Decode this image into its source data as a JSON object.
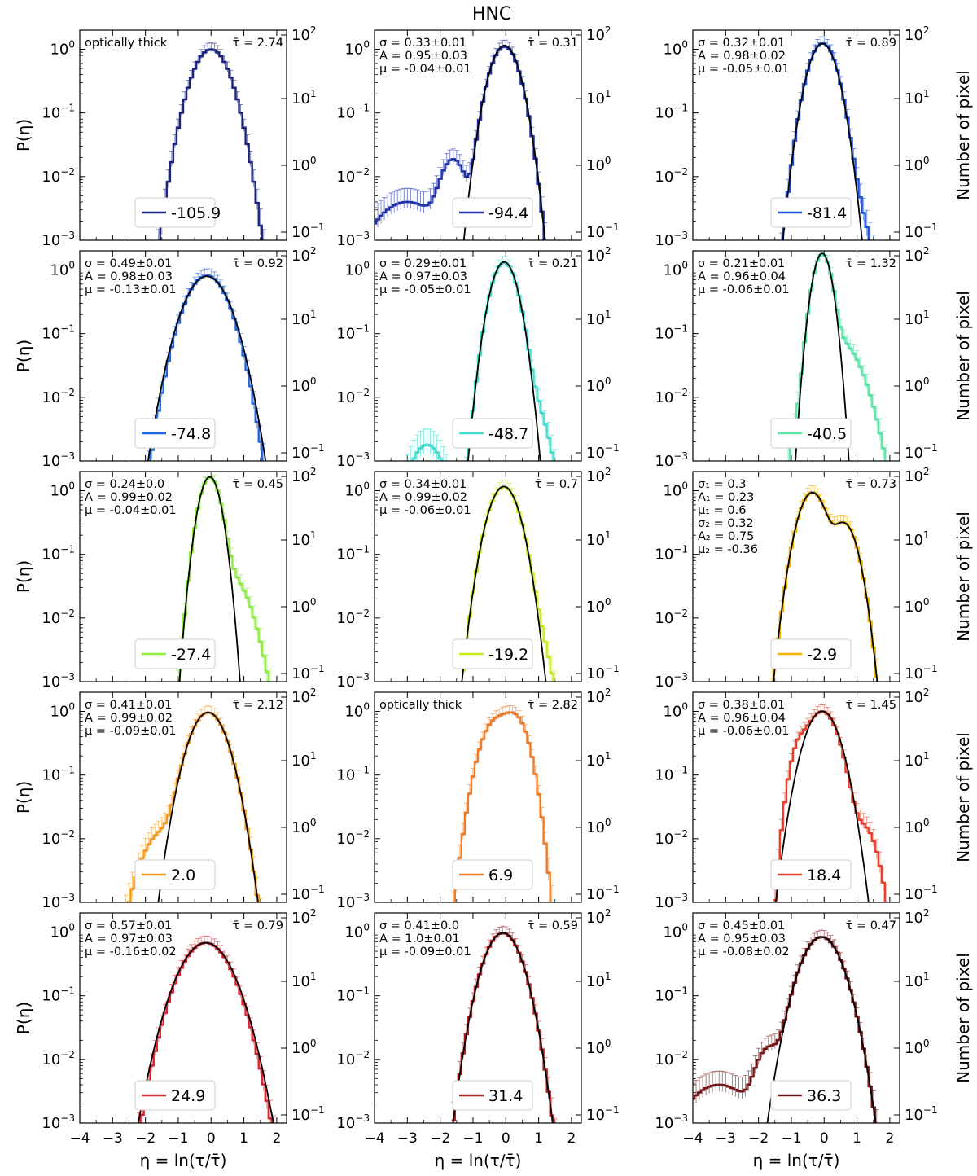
{
  "figure": {
    "title": "HNC",
    "ylabel_left": "P(η)",
    "ylabel_right": "Number of pixel",
    "xlabel": "η = ln(τ/τ̄)",
    "x_ticks": [
      "−4",
      "−3",
      "−2",
      "−1",
      "0",
      "1",
      "2"
    ],
    "left_ticks": [
      {
        "base": "10",
        "exp": "0"
      },
      {
        "base": "10",
        "exp": "−1"
      },
      {
        "base": "10",
        "exp": "−2"
      },
      {
        "base": "10",
        "exp": "−3"
      }
    ],
    "right_ticks": [
      {
        "base": "10",
        "exp": "2"
      },
      {
        "base": "10",
        "exp": "1"
      },
      {
        "base": "10",
        "exp": "0"
      },
      {
        "base": "10",
        "exp": "−1"
      }
    ]
  },
  "chart_data": [
    {
      "type": "line",
      "legend": "-105.9",
      "tau_bar": "τ̄ = 2.74",
      "annot": [
        "optically thick"
      ],
      "color": "#1a237e",
      "xlim": [
        -4,
        2.3
      ],
      "ylim": [
        0.001,
        2
      ],
      "yscale": "log",
      "fit": null,
      "shape": [
        {
          "c": 0,
          "s": 0.42,
          "a": 1.0
        }
      ]
    },
    {
      "type": "line",
      "legend": "-94.4",
      "tau_bar": "τ̄ = 0.31",
      "annot": [
        "σ = 0.33±0.01",
        "A = 0.95±0.03",
        "μ = -0.04±0.01"
      ],
      "color": "#1e2fa8",
      "xlim": [
        -4,
        2.3
      ],
      "ylim": [
        0.001,
        2
      ],
      "yscale": "log",
      "fit": {
        "s": 0.33,
        "A": 0.95,
        "mu": -0.04
      },
      "shape": [
        {
          "c": -0.04,
          "s": 0.33,
          "a": 1.1
        },
        {
          "c": -1.6,
          "s": 0.3,
          "a": 0.018
        },
        {
          "c": -3.0,
          "s": 0.8,
          "a": 0.004
        }
      ]
    },
    {
      "type": "line",
      "legend": "-81.4",
      "tau_bar": "τ̄ = 0.89",
      "annot": [
        "σ = 0.32±0.01",
        "A = 0.98±0.02",
        "μ = -0.05±0.01"
      ],
      "color": "#1f4fd6",
      "xlim": [
        -4,
        2.3
      ],
      "ylim": [
        0.001,
        2
      ],
      "yscale": "log",
      "fit": {
        "s": 0.32,
        "A": 0.98,
        "mu": -0.05
      },
      "shape": [
        {
          "c": -0.05,
          "s": 0.32,
          "a": 1.25
        },
        {
          "c": 0.8,
          "s": 0.35,
          "a": 0.004
        }
      ]
    },
    {
      "type": "line",
      "legend": "-74.8",
      "tau_bar": "τ̄ = 0.92",
      "annot": [
        "σ = 0.49±0.01",
        "A = 0.98±0.03",
        "μ = -0.13±0.01"
      ],
      "color": "#1f66e0",
      "xlim": [
        -4,
        2.3
      ],
      "ylim": [
        0.001,
        2
      ],
      "yscale": "log",
      "fit": {
        "s": 0.49,
        "A": 0.98,
        "mu": -0.13
      },
      "shape": [
        {
          "c": -0.13,
          "s": 0.47,
          "a": 0.82
        }
      ]
    },
    {
      "type": "line",
      "legend": "-48.7",
      "tau_bar": "τ̄ = 0.21",
      "annot": [
        "σ = 0.29±0.01",
        "A = 0.97±0.03",
        "μ = -0.05±0.01"
      ],
      "color": "#40e0d0",
      "xlim": [
        -4,
        2.3
      ],
      "ylim": [
        0.001,
        2
      ],
      "yscale": "log",
      "fit": {
        "s": 0.29,
        "A": 0.97,
        "mu": -0.05
      },
      "shape": [
        {
          "c": -0.05,
          "s": 0.29,
          "a": 1.3
        },
        {
          "c": 0.7,
          "s": 0.35,
          "a": 0.01
        },
        {
          "c": -2.4,
          "s": 0.4,
          "a": 0.0018
        }
      ]
    },
    {
      "type": "line",
      "legend": "-40.5",
      "tau_bar": "τ̄ = 1.32",
      "annot": [
        "σ = 0.21±0.01",
        "A = 0.96±0.04",
        "μ = -0.06±0.01"
      ],
      "color": "#5ce6a8",
      "xlim": [
        -4,
        2.3
      ],
      "ylim": [
        0.001,
        2
      ],
      "yscale": "log",
      "fit": {
        "s": 0.21,
        "A": 0.96,
        "mu": -0.06
      },
      "shape": [
        {
          "c": -0.06,
          "s": 0.21,
          "a": 1.7
        },
        {
          "c": 0.4,
          "s": 0.5,
          "a": 0.08
        }
      ]
    },
    {
      "type": "line",
      "legend": "-27.4",
      "tau_bar": "τ̄ = 0.45",
      "annot": [
        "σ = 0.24±0.0",
        "A = 0.99±0.02",
        "μ = -0.04±0.01"
      ],
      "color": "#90ee40",
      "xlim": [
        -4,
        2.3
      ],
      "ylim": [
        0.001,
        2
      ],
      "yscale": "log",
      "fit": {
        "s": 0.24,
        "A": 0.99,
        "mu": -0.04
      },
      "shape": [
        {
          "c": -0.04,
          "s": 0.24,
          "a": 1.6
        },
        {
          "c": 0.5,
          "s": 0.45,
          "a": 0.05
        }
      ]
    },
    {
      "type": "line",
      "legend": "-19.2",
      "tau_bar": "τ̄ = 0.7",
      "annot": [
        "σ = 0.34±0.01",
        "A = 0.99±0.02",
        "μ = -0.06±0.01"
      ],
      "color": "#c8f020",
      "xlim": [
        -4,
        2.3
      ],
      "ylim": [
        0.001,
        2
      ],
      "yscale": "log",
      "fit": {
        "s": 0.34,
        "A": 0.99,
        "mu": -0.06
      },
      "shape": [
        {
          "c": -0.06,
          "s": 0.34,
          "a": 1.15
        },
        {
          "c": 0.9,
          "s": 0.3,
          "a": 0.005
        }
      ]
    },
    {
      "type": "line",
      "legend": "-2.9",
      "tau_bar": "τ̄ = 0.73",
      "annot": [
        "σ₁ = 0.3",
        "A₁ = 0.23",
        "μ₁ = 0.6",
        "σ₂ = 0.32",
        "A₂ = 0.75",
        "μ₂ = -0.36"
      ],
      "color": "#f5b301",
      "xlim": [
        -4,
        2.3
      ],
      "ylim": [
        0.001,
        2
      ],
      "yscale": "log",
      "fit": {
        "double": [
          {
            "s": 0.3,
            "A": 0.23,
            "mu": 0.6
          },
          {
            "s": 0.32,
            "A": 0.75,
            "mu": -0.36
          }
        ]
      },
      "shape": [
        {
          "c": -0.36,
          "s": 0.32,
          "a": 0.94
        },
        {
          "c": 0.6,
          "s": 0.3,
          "a": 0.31
        }
      ]
    },
    {
      "type": "line",
      "legend": "2.0",
      "tau_bar": "τ̄ = 2.12",
      "annot": [
        "σ = 0.41±0.01",
        "A = 0.99±0.02",
        "μ = -0.09±0.01"
      ],
      "color": "#f59a1a",
      "xlim": [
        -4,
        2.3
      ],
      "ylim": [
        0.001,
        2
      ],
      "yscale": "log",
      "fit": {
        "s": 0.41,
        "A": 0.99,
        "mu": -0.09
      },
      "shape": [
        {
          "c": -0.09,
          "s": 0.41,
          "a": 0.96
        },
        {
          "c": -1.5,
          "s": 0.45,
          "a": 0.012
        }
      ]
    },
    {
      "type": "line",
      "legend": "6.9",
      "tau_bar": "τ̄ = 2.82",
      "annot": [
        "optically thick"
      ],
      "color": "#f37a20",
      "xlim": [
        -4,
        2.3
      ],
      "ylim": [
        0.001,
        2
      ],
      "yscale": "log",
      "fit": null,
      "shape": [
        {
          "c": -0.3,
          "s": 0.35,
          "a": 0.7
        },
        {
          "c": 0.3,
          "s": 0.3,
          "a": 0.75
        }
      ]
    },
    {
      "type": "line",
      "legend": "18.4",
      "tau_bar": "τ̄ = 1.45",
      "annot": [
        "σ = 0.38±0.01",
        "A = 0.96±0.04",
        "μ = -0.06±0.01"
      ],
      "color": "#e8402a",
      "xlim": [
        -4,
        2.3
      ],
      "ylim": [
        0.001,
        2
      ],
      "yscale": "log",
      "fit": {
        "s": 0.38,
        "A": 0.96,
        "mu": -0.06
      },
      "shape": [
        {
          "c": -0.06,
          "s": 0.36,
          "a": 1.0
        },
        {
          "c": -0.75,
          "s": 0.22,
          "a": 0.25
        },
        {
          "c": 1.2,
          "s": 0.3,
          "a": 0.015
        }
      ]
    },
    {
      "type": "line",
      "legend": "24.9",
      "tau_bar": "τ̄ = 0.79",
      "annot": [
        "σ = 0.57±0.01",
        "A = 0.97±0.03",
        "μ = -0.16±0.02"
      ],
      "color": "#e0202a",
      "xlim": [
        -4,
        2.3
      ],
      "ylim": [
        0.001,
        2
      ],
      "yscale": "log",
      "fit": {
        "s": 0.57,
        "A": 0.97,
        "mu": -0.16
      },
      "shape": [
        {
          "c": -0.16,
          "s": 0.55,
          "a": 0.68
        }
      ]
    },
    {
      "type": "line",
      "legend": "31.4",
      "tau_bar": "τ̄ = 0.59",
      "annot": [
        "σ = 0.41±0.0",
        "A = 1.0±0.01",
        "μ = -0.09±0.01"
      ],
      "color": "#b81c1c",
      "xlim": [
        -4,
        2.3
      ],
      "ylim": [
        0.001,
        2
      ],
      "yscale": "log",
      "fit": {
        "s": 0.41,
        "A": 1.0,
        "mu": -0.09
      },
      "shape": [
        {
          "c": -0.09,
          "s": 0.41,
          "a": 0.97
        }
      ]
    },
    {
      "type": "line",
      "legend": "36.3",
      "tau_bar": "τ̄ = 0.47",
      "annot": [
        "σ = 0.45±0.01",
        "A = 0.95±0.03",
        "μ = -0.08±0.02"
      ],
      "color": "#7a1414",
      "xlim": [
        -4,
        2.3
      ],
      "ylim": [
        0.001,
        2
      ],
      "yscale": "log",
      "fit": {
        "s": 0.45,
        "A": 0.95,
        "mu": -0.08
      },
      "shape": [
        {
          "c": -0.08,
          "s": 0.45,
          "a": 0.84
        },
        {
          "c": -1.7,
          "s": 0.3,
          "a": 0.014
        },
        {
          "c": -3.2,
          "s": 0.8,
          "a": 0.004
        }
      ]
    }
  ]
}
